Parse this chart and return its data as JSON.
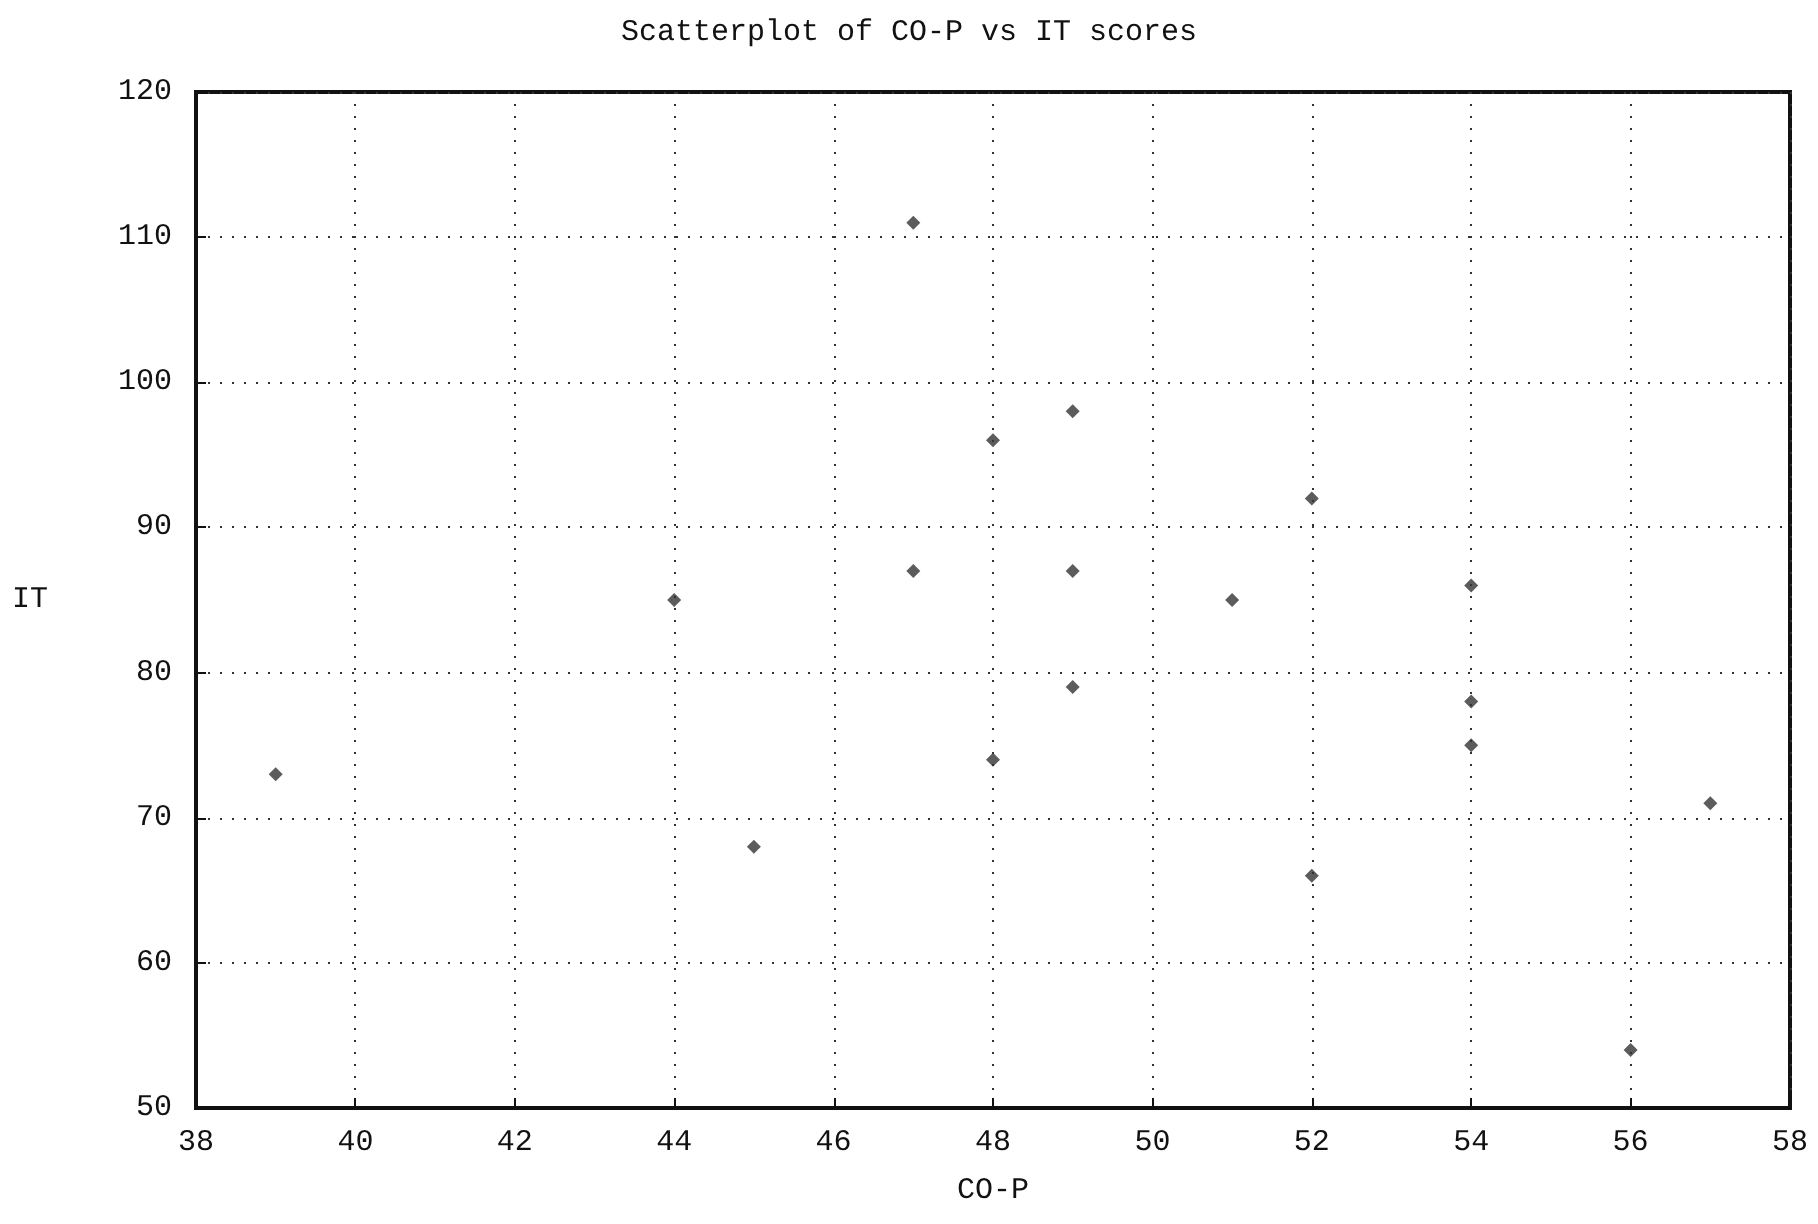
{
  "chart_data": {
    "type": "scatter",
    "title": "Scatterplot of CO-P vs IT scores",
    "xlabel": "CO-P",
    "ylabel": "IT",
    "x": [
      39,
      44,
      45,
      47,
      47,
      48,
      48,
      49,
      49,
      49,
      51,
      52,
      52,
      54,
      54,
      54,
      56,
      57
    ],
    "values": [
      73,
      85,
      68,
      111,
      87,
      96,
      74,
      98,
      87,
      79,
      85,
      92,
      66,
      86,
      78,
      75,
      54,
      71
    ],
    "color": "#333333",
    "marker": "diamond",
    "xlim": [
      38,
      58
    ],
    "xticks": [
      38,
      40,
      42,
      44,
      46,
      48,
      50,
      52,
      54,
      56,
      58
    ],
    "ylim": [
      50,
      120
    ],
    "yticks": [
      50,
      60,
      70,
      80,
      90,
      100,
      110,
      120
    ],
    "grid": true
  }
}
